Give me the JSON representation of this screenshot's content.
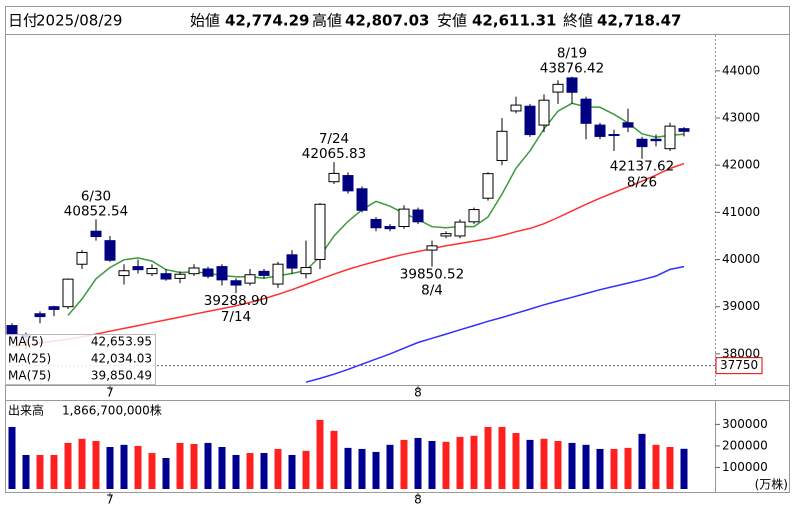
{
  "header": {
    "fields": [
      {
        "label": "日付",
        "value": "2025/08/29",
        "color": "#000000"
      },
      {
        "label": "始値",
        "value": "42,774.29",
        "color": "#000000"
      },
      {
        "label": "高値",
        "value": "42,807.03",
        "color": "#e00000"
      },
      {
        "label": "安値",
        "value": "42,611.31",
        "color": "#008000"
      },
      {
        "label": "終値",
        "value": "42,718.47",
        "color": "#000000"
      }
    ]
  },
  "chart_data": [
    {
      "type": "candlestick",
      "categories": [
        null,
        null,
        null,
        null,
        null,
        null,
        null,
        "7",
        null,
        null,
        null,
        null,
        null,
        null,
        null,
        null,
        null,
        null,
        null,
        null,
        null,
        null,
        null,
        null,
        null,
        null,
        null,
        null,
        null,
        "8",
        null,
        null,
        null,
        null,
        null,
        null,
        null,
        null,
        null,
        null,
        null,
        null,
        null,
        null,
        null,
        null,
        null,
        null,
        null
      ],
      "open": [
        38600,
        38400,
        38850,
        39000,
        39000,
        39900,
        40600,
        40400,
        39660,
        39850,
        39700,
        39700,
        39600,
        39700,
        39800,
        39850,
        39550,
        39500,
        39750,
        39480,
        40100,
        39700,
        40000,
        41650,
        41780,
        41500,
        40850,
        40700,
        40700,
        41050,
        40200,
        40500,
        40500,
        40800,
        41300,
        42100,
        43150,
        43250,
        42850,
        43550,
        43850,
        43400,
        42850,
        42650,
        42900,
        42550,
        42550,
        42350,
        42774.29
      ],
      "high": [
        38650,
        38450,
        38900,
        39020,
        39600,
        40200,
        40852.54,
        40500,
        39900,
        40000,
        39900,
        39800,
        39750,
        39900,
        39850,
        39900,
        39600,
        39800,
        39800,
        39950,
        40200,
        40400,
        41200,
        42065.83,
        41850,
        41550,
        40900,
        40750,
        41150,
        41100,
        40400,
        40600,
        40850,
        41100,
        41850,
        42999,
        43451,
        43300,
        43500,
        43800,
        43876.42,
        43450,
        42900,
        42750,
        43200,
        42600,
        42650,
        42900,
        42807.03
      ],
      "low": [
        38300,
        38100,
        38650,
        38800,
        38950,
        39800,
        40400,
        39950,
        39470,
        39700,
        39650,
        39550,
        39500,
        39650,
        39600,
        39450,
        39288.9,
        39450,
        39600,
        39400,
        39700,
        39600,
        39800,
        41600,
        41400,
        41000,
        40600,
        40600,
        40650,
        40750,
        39850.52,
        40450,
        40450,
        40750,
        41250,
        42000,
        43100,
        42600,
        42700,
        43300,
        43300,
        42550,
        42550,
        42300,
        42700,
        42137.62,
        42400,
        42300,
        42611.31
      ],
      "close": [
        38403,
        38354,
        38790,
        38942,
        39584,
        40150,
        40487,
        39986,
        39762,
        39785,
        39810,
        39587,
        39688,
        39821,
        39646,
        39569,
        39459,
        39678,
        39663,
        39901,
        39819,
        39830,
        41171,
        41826,
        41456,
        41044,
        40674,
        40654,
        41069,
        40800,
        40290,
        40549,
        40794,
        41059,
        41820,
        42718,
        43274,
        42649,
        43378,
        43714,
        43546,
        42888,
        42610,
        42633,
        42807,
        42394,
        42520,
        42828,
        42718.47
      ],
      "up_color": "#ffffff",
      "down_color": "#000080",
      "ylim": [
        37340,
        44760
      ],
      "yticks": [
        38000,
        39000,
        40000,
        41000,
        42000,
        43000,
        44000
      ],
      "marker_line": {
        "value": 37750,
        "color": "#e00000"
      },
      "series": [
        {
          "name": "MA(5)",
          "color": "#3c9a3c",
          "last_value_label": "42,653.95",
          "values": [
            null,
            null,
            null,
            null,
            38815,
            39164,
            39591,
            39830,
            39994,
            40034,
            39966,
            39786,
            39726,
            39738,
            39710,
            39662,
            39637,
            39635,
            39603,
            39654,
            39704,
            39767,
            40066,
            40498,
            40809,
            41054,
            41234,
            41131,
            40979,
            40848,
            40697,
            40672,
            40700,
            40698,
            40902,
            41388,
            41933,
            42304,
            42768,
            43147,
            43312,
            43235,
            43227,
            43078,
            42897,
            42666,
            42593,
            42636,
            42653.95
          ]
        },
        {
          "name": "MA(25)",
          "color": "#ff3030",
          "last_value_label": "42,034.03",
          "values": [
            38150,
            38190,
            38230,
            38270,
            38310,
            38360,
            38420,
            38480,
            38540,
            38600,
            38660,
            38720,
            38780,
            38840,
            38900,
            38960,
            39020,
            39090,
            39170,
            39260,
            39360,
            39470,
            39580,
            39690,
            39790,
            39880,
            39960,
            40040,
            40110,
            40170,
            40230,
            40290,
            40340,
            40390,
            40440,
            40510,
            40590,
            40660,
            40760,
            40890,
            41030,
            41170,
            41300,
            41420,
            41540,
            41660,
            41790,
            41930,
            42034.03
          ]
        },
        {
          "name": "MA(75)",
          "color": "#3030ff",
          "last_value_label": "39,850.49",
          "values": [
            null,
            null,
            null,
            null,
            null,
            null,
            null,
            null,
            null,
            null,
            null,
            null,
            null,
            null,
            null,
            null,
            null,
            null,
            null,
            null,
            null,
            37400,
            37480,
            37570,
            37670,
            37780,
            37890,
            38000,
            38120,
            38240,
            38330,
            38420,
            38510,
            38600,
            38690,
            38770,
            38860,
            38950,
            39040,
            39120,
            39200,
            39280,
            39360,
            39430,
            39500,
            39570,
            39650,
            39790,
            39850.49
          ]
        }
      ],
      "annotations": [
        {
          "date": "6/30",
          "label": "40852.54"
        },
        {
          "date": "7/14",
          "label": "39288.90"
        },
        {
          "date": "7/24",
          "label": "42065.83"
        },
        {
          "date": "8/4",
          "label": "39850.52"
        },
        {
          "date": "8/19",
          "label": "43876.42"
        },
        {
          "date": "8/26",
          "label": "42137.62"
        }
      ]
    },
    {
      "type": "bar",
      "title": "出来高",
      "total_label": "1,866,700,000株",
      "unit_label": "(万株)",
      "categories": [
        null,
        null,
        null,
        null,
        null,
        null,
        null,
        "7",
        null,
        null,
        null,
        null,
        null,
        null,
        null,
        null,
        null,
        null,
        null,
        null,
        null,
        null,
        null,
        null,
        null,
        null,
        null,
        null,
        null,
        "8",
        null,
        null,
        null,
        null,
        null,
        null,
        null,
        null,
        null,
        null,
        null,
        null,
        null,
        null,
        null,
        null,
        null,
        null,
        null
      ],
      "values": [
        288000,
        158000,
        158000,
        158000,
        214000,
        233000,
        223000,
        195000,
        205000,
        200000,
        167000,
        144000,
        214000,
        209000,
        214000,
        195000,
        158000,
        167000,
        167000,
        186000,
        158000,
        177000,
        321000,
        270000,
        191000,
        186000,
        172000,
        205000,
        228000,
        237000,
        223000,
        219000,
        242000,
        247000,
        288000,
        288000,
        260000,
        228000,
        233000,
        223000,
        214000,
        205000,
        186000,
        186000,
        191000,
        256000,
        205000,
        195000,
        186670
      ],
      "up_color": "#ff2020",
      "down_color": "#000090",
      "ylim": [
        0,
        390000
      ],
      "yticks": [
        100000,
        200000,
        300000
      ]
    }
  ]
}
